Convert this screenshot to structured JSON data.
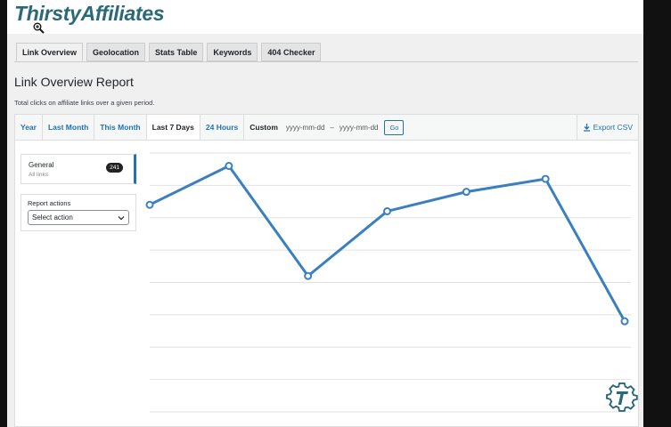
{
  "brand": {
    "logo": "ThirstyAffiliates",
    "accent": "#2a6978"
  },
  "tabs": [
    {
      "label": "Link Overview",
      "active": true
    },
    {
      "label": "Geolocation"
    },
    {
      "label": "Stats Table"
    },
    {
      "label": "Keywords"
    },
    {
      "label": "404 Checker"
    }
  ],
  "page": {
    "title": "Link Overview Report",
    "subtitle": "Total clicks on affiliate links over a given period."
  },
  "ranges": {
    "year": "Year",
    "last_month": "Last Month",
    "this_month": "This Month",
    "last7": "Last 7 Days",
    "h24": "24 Hours",
    "custom": "Custom",
    "from_placeholder": "yyyy-mm-dd",
    "sep": "–",
    "to_placeholder": "yyyy-mm-dd",
    "go": "Go",
    "export": "Export CSV",
    "selected": "Last 7 Days"
  },
  "sidebar": {
    "general_title": "General",
    "general_sub": "All links",
    "count": "241",
    "actions_label": "Report actions",
    "select_value": "Select action"
  },
  "chart_data": {
    "type": "line",
    "color": "#3a7fc0",
    "grid": true,
    "y_units": "gridlines (no axis labels shown)",
    "ylim": [
      0,
      8
    ],
    "values": [
      6.4,
      7.6,
      4.2,
      6.2,
      6.8,
      7.2,
      2.8
    ]
  }
}
